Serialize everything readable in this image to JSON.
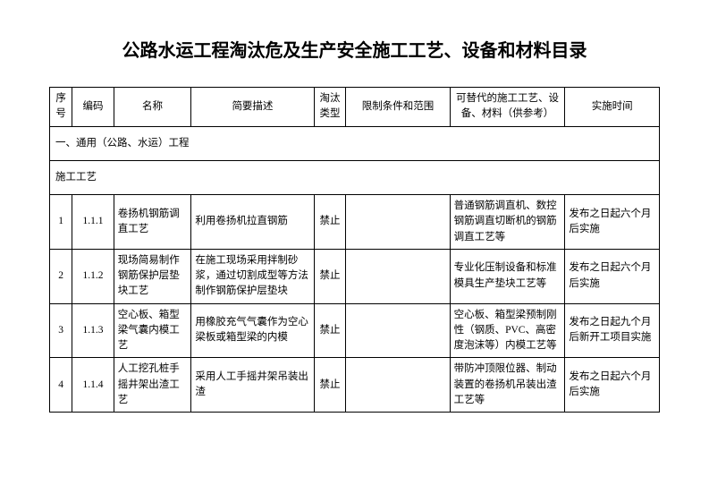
{
  "title": "公路水运工程淘汰危及生产安全施工工艺、设备和材料目录",
  "headers": {
    "seq": "序号",
    "code": "编码",
    "name": "名称",
    "desc": "简要描述",
    "type": "淘汰类型",
    "limit": "限制条件和范围",
    "alt": "可替代的施工工艺、设备、材料（供参考）",
    "time": "实施时间"
  },
  "section1": "一、通用（公路、水运）工程",
  "section2": "施工工艺",
  "rows": [
    {
      "seq": "1",
      "code": "1.1.1",
      "name": "卷扬机钢筋调直工艺",
      "desc": "利用卷扬机拉直钢筋",
      "type": "禁止",
      "limit": "",
      "alt": "普通钢筋调直机、数控钢筋调直切断机的钢筋调直工艺等",
      "time": "发布之日起六个月后实施"
    },
    {
      "seq": "2",
      "code": "1.1.2",
      "name": "现场简易制作钢筋保护层垫块工艺",
      "desc": "在施工现场采用拌制砂浆，通过切割成型等方法制作钢筋保护层垫块",
      "type": "禁止",
      "limit": "",
      "alt": "专业化压制设备和标准模具生产垫块工艺等",
      "time": "发布之日起六个月后实施"
    },
    {
      "seq": "3",
      "code": "1.1.3",
      "name": "空心板、箱型梁气囊内模工艺",
      "desc": "用橡胶充气气囊作为空心梁板或箱型梁的内模",
      "type": "禁止",
      "limit": "",
      "alt": "空心板、箱型梁预制刚性（钢质、PVC、高密度泡沫等）内模工艺等",
      "time": "发布之日起九个月后新开工项目实施"
    },
    {
      "seq": "4",
      "code": "1.1.4",
      "name": "人工挖孔桩手摇井架出渣工艺",
      "desc": "采用人工手摇井架吊装出渣",
      "type": "禁止",
      "limit": "",
      "alt": "带防冲顶限位器、制动装置的卷扬机吊装出渣工艺等",
      "time": "发布之日起六个月后实施"
    }
  ]
}
